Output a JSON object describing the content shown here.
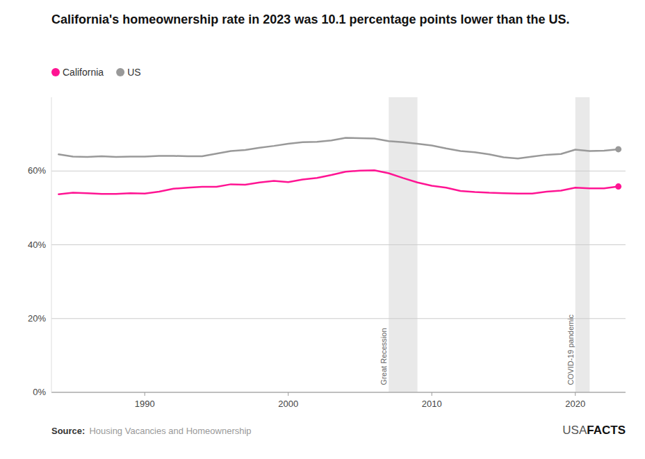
{
  "chart_data": {
    "type": "line",
    "title": "California's homeownership rate in 2023 was 10.1 percentage points lower than the US.",
    "x": [
      1984,
      1985,
      1986,
      1987,
      1988,
      1989,
      1990,
      1991,
      1992,
      1993,
      1994,
      1995,
      1996,
      1997,
      1998,
      1999,
      2000,
      2001,
      2002,
      2003,
      2004,
      2005,
      2006,
      2007,
      2008,
      2009,
      2010,
      2011,
      2012,
      2013,
      2014,
      2015,
      2016,
      2017,
      2018,
      2019,
      2020,
      2021,
      2022,
      2023
    ],
    "series": [
      {
        "name": "California",
        "color": "#FF1493",
        "marker": "circle",
        "values": [
          53.7,
          54.1,
          54.0,
          53.8,
          53.8,
          54.0,
          53.9,
          54.4,
          55.2,
          55.5,
          55.7,
          55.7,
          56.4,
          56.3,
          56.9,
          57.3,
          57.0,
          57.7,
          58.1,
          58.9,
          59.8,
          60.1,
          60.2,
          59.4,
          58.1,
          56.9,
          56.0,
          55.5,
          54.6,
          54.3,
          54.1,
          54.0,
          53.9,
          53.9,
          54.4,
          54.7,
          55.5,
          55.3,
          55.3,
          55.8
        ]
      },
      {
        "name": "US",
        "color": "#999999",
        "marker": "circle",
        "values": [
          64.5,
          63.9,
          63.8,
          64.0,
          63.8,
          63.9,
          63.9,
          64.1,
          64.1,
          64.0,
          64.0,
          64.7,
          65.4,
          65.7,
          66.3,
          66.8,
          67.4,
          67.8,
          67.9,
          68.3,
          69.0,
          68.9,
          68.8,
          68.1,
          67.8,
          67.4,
          66.9,
          66.1,
          65.4,
          65.1,
          64.5,
          63.7,
          63.4,
          63.9,
          64.4,
          64.6,
          65.8,
          65.4,
          65.5,
          65.9
        ]
      }
    ],
    "annotations": [
      {
        "text": "Great Recession",
        "x_start": 2007,
        "x_end": 2009,
        "y": 2
      },
      {
        "text": "COVID-19 pandemic",
        "x_start": 2020,
        "x_end": 2021,
        "y": 2
      }
    ],
    "xlim": [
      1983.5,
      2023.5
    ],
    "xticks": [
      1990,
      2000,
      2010,
      2020
    ],
    "ylim": [
      0,
      80
    ],
    "yticks": [
      {
        "value": 0,
        "label": "0%"
      },
      {
        "value": 20,
        "label": "20%"
      },
      {
        "value": 40,
        "label": "40%"
      },
      {
        "value": 60,
        "label": "60%"
      }
    ],
    "grid": true,
    "legend": "top-left",
    "source_label": "Source:",
    "source": "Housing Vacancies and Homeownership",
    "credit": [
      "USA",
      "FACTS"
    ]
  }
}
